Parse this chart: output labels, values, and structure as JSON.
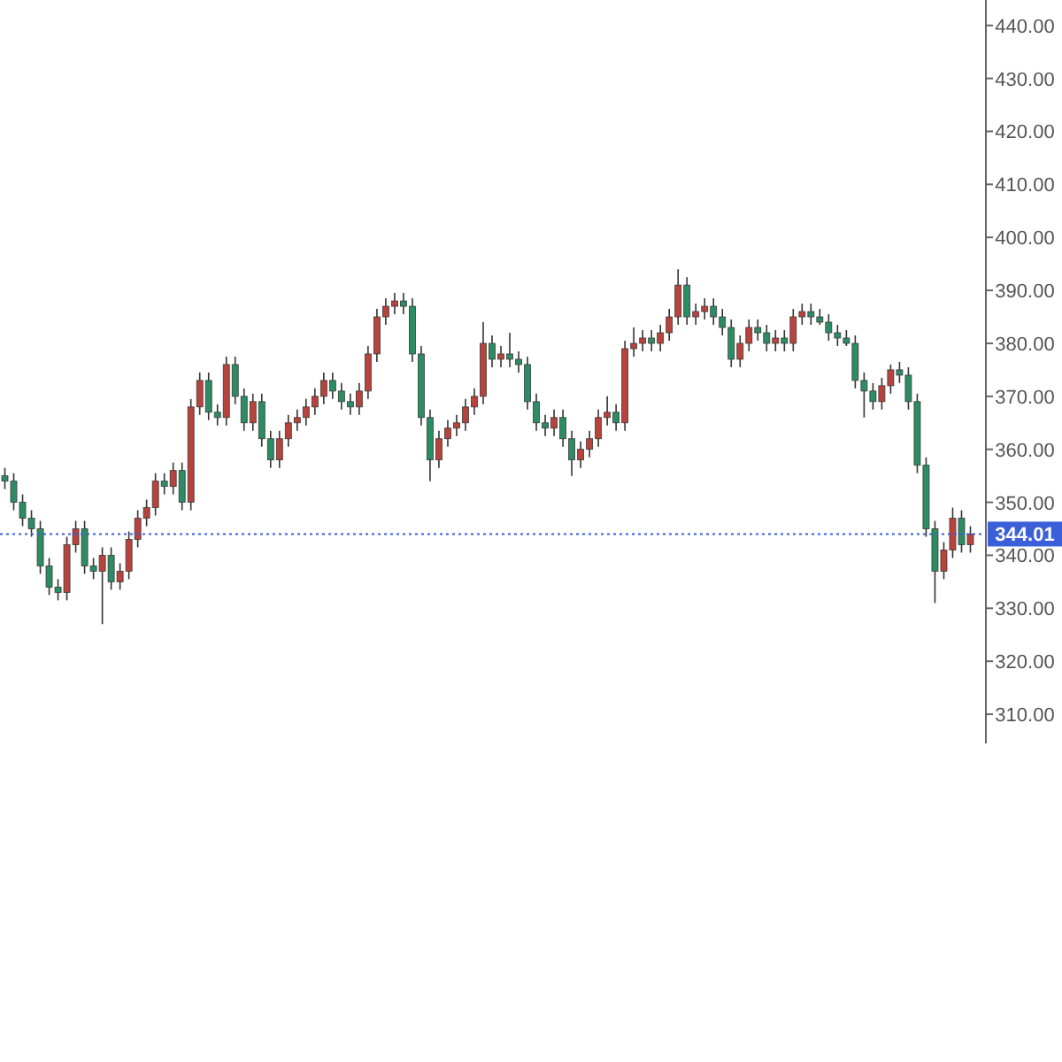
{
  "chart_data": {
    "type": "candlestick",
    "categories": [
      null,
      null,
      null,
      null,
      null,
      null,
      null,
      null,
      null,
      null,
      null,
      null,
      null,
      null,
      null,
      null,
      null,
      null,
      null,
      null,
      null,
      null,
      null,
      null,
      null,
      null,
      null,
      null,
      null,
      null,
      null,
      null,
      null,
      null,
      null,
      null,
      null,
      null,
      null,
      null,
      null,
      null,
      null,
      null,
      null,
      null,
      null,
      null,
      null,
      null,
      null,
      null,
      null,
      null,
      null,
      null,
      null,
      null,
      null,
      null,
      null,
      null,
      null,
      null,
      null,
      null,
      null,
      null,
      null,
      null,
      null,
      null,
      null,
      null,
      null,
      null,
      null,
      null,
      null,
      null,
      null,
      null,
      null,
      null,
      null,
      null,
      null,
      null,
      null,
      null,
      null,
      null,
      null,
      null,
      null,
      null,
      null,
      null,
      null,
      null,
      null,
      null,
      null,
      null,
      null,
      null,
      null,
      null,
      null,
      null
    ],
    "ohlc": [
      [
        355,
        356.5,
        352.5,
        354
      ],
      [
        354,
        355.5,
        348.5,
        350
      ],
      [
        350,
        351.5,
        345.5,
        347
      ],
      [
        347,
        348.5,
        343.5,
        345
      ],
      [
        345,
        346.5,
        336.5,
        338
      ],
      [
        338,
        339.5,
        332.5,
        334
      ],
      [
        334,
        335.5,
        331.5,
        333
      ],
      [
        333,
        343.5,
        331.5,
        342
      ],
      [
        342,
        346.5,
        340.5,
        345
      ],
      [
        345,
        346.5,
        336.5,
        338
      ],
      [
        338,
        339.5,
        335.5,
        337
      ],
      [
        337,
        341.5,
        327,
        340
      ],
      [
        340,
        341.5,
        333.5,
        335
      ],
      [
        335,
        338.5,
        333.5,
        337
      ],
      [
        337,
        344.5,
        335.5,
        343
      ],
      [
        343,
        348.5,
        341.5,
        347
      ],
      [
        347,
        350.5,
        345.5,
        349
      ],
      [
        349,
        355.5,
        347.5,
        354
      ],
      [
        354,
        355.5,
        351.5,
        353
      ],
      [
        353,
        357.5,
        351.5,
        356
      ],
      [
        356,
        357.5,
        348.5,
        350
      ],
      [
        350,
        369.5,
        348.5,
        368
      ],
      [
        368,
        374.5,
        366.5,
        373
      ],
      [
        373,
        374.5,
        365.5,
        367
      ],
      [
        367,
        368.5,
        364.5,
        366
      ],
      [
        366,
        377.5,
        364.5,
        376
      ],
      [
        376,
        377.5,
        368.5,
        370
      ],
      [
        370,
        371.5,
        363.5,
        365
      ],
      [
        365,
        370.5,
        363.5,
        369
      ],
      [
        369,
        370.5,
        360.5,
        362
      ],
      [
        362,
        363.5,
        356.5,
        358
      ],
      [
        358,
        363.5,
        356.5,
        362
      ],
      [
        362,
        366.5,
        360.5,
        365
      ],
      [
        365,
        367.5,
        363.5,
        366
      ],
      [
        366,
        369.5,
        364.5,
        368
      ],
      [
        368,
        371.5,
        366.5,
        370
      ],
      [
        370,
        374.5,
        368.5,
        373
      ],
      [
        373,
        374.5,
        369.5,
        371
      ],
      [
        371,
        372.5,
        367.5,
        369
      ],
      [
        369,
        370.5,
        366.5,
        368
      ],
      [
        368,
        372.5,
        366.5,
        371
      ],
      [
        371,
        379.5,
        369.5,
        378
      ],
      [
        378,
        386.5,
        376.5,
        385
      ],
      [
        385,
        388.5,
        383.5,
        387
      ],
      [
        387,
        389.5,
        385.5,
        388
      ],
      [
        388,
        389.5,
        385.5,
        387
      ],
      [
        387,
        388.5,
        376.5,
        378
      ],
      [
        378,
        379.5,
        364.5,
        366
      ],
      [
        366,
        367.5,
        354,
        358
      ],
      [
        358,
        363.5,
        356.5,
        362
      ],
      [
        362,
        365.5,
        360.5,
        364
      ],
      [
        364,
        366.5,
        362.5,
        365
      ],
      [
        365,
        369.5,
        363.5,
        368
      ],
      [
        368,
        371.5,
        366.5,
        370
      ],
      [
        370,
        384,
        368.5,
        380
      ],
      [
        380,
        381.5,
        375.5,
        377
      ],
      [
        377,
        379.5,
        375.5,
        378
      ],
      [
        378,
        382,
        375.5,
        377
      ],
      [
        377,
        378.5,
        374.5,
        376
      ],
      [
        376,
        377.5,
        367.5,
        369
      ],
      [
        369,
        370.5,
        363.5,
        365
      ],
      [
        365,
        366.5,
        362.5,
        364
      ],
      [
        364,
        367.5,
        362.5,
        366
      ],
      [
        366,
        367.5,
        360.5,
        362
      ],
      [
        362,
        363.5,
        355,
        358
      ],
      [
        358,
        361.5,
        356.5,
        360
      ],
      [
        360,
        363.5,
        358.5,
        362
      ],
      [
        362,
        367.5,
        360.5,
        366
      ],
      [
        366,
        370,
        364.5,
        367
      ],
      [
        367,
        368.5,
        363.5,
        365
      ],
      [
        365,
        380.5,
        363.5,
        379
      ],
      [
        379,
        383,
        377.5,
        380
      ],
      [
        380,
        382.5,
        378.5,
        381
      ],
      [
        381,
        382.5,
        378.5,
        380
      ],
      [
        380,
        383.5,
        378.5,
        382
      ],
      [
        382,
        386.5,
        380.5,
        385
      ],
      [
        385,
        394,
        383.5,
        391
      ],
      [
        391,
        392.5,
        383.5,
        385
      ],
      [
        385,
        387.5,
        383.5,
        386
      ],
      [
        386,
        388.5,
        384.5,
        387
      ],
      [
        387,
        388.5,
        383.5,
        385
      ],
      [
        385,
        386.5,
        381.5,
        383
      ],
      [
        383,
        384.5,
        375.5,
        377
      ],
      [
        377,
        381.5,
        375.5,
        380
      ],
      [
        380,
        384.5,
        378.5,
        383
      ],
      [
        383,
        384.5,
        380.5,
        382
      ],
      [
        382,
        383.5,
        378.5,
        380
      ],
      [
        380,
        382.5,
        378.5,
        381
      ],
      [
        381,
        382.5,
        378.5,
        380
      ],
      [
        380,
        386.5,
        378.5,
        385
      ],
      [
        385,
        387.5,
        383.5,
        386
      ],
      [
        386,
        387.5,
        383.5,
        385
      ],
      [
        385,
        386.5,
        383.5,
        384
      ],
      [
        384,
        385.5,
        380.5,
        382
      ],
      [
        382,
        383.5,
        379.5,
        381
      ],
      [
        381,
        382.5,
        379.5,
        380
      ],
      [
        380,
        381.5,
        371.5,
        373
      ],
      [
        373,
        374.5,
        366,
        371
      ],
      [
        371,
        372.5,
        367.5,
        369
      ],
      [
        369,
        373.5,
        367.5,
        372
      ],
      [
        372,
        376,
        370.5,
        375
      ],
      [
        375,
        376.5,
        372.5,
        374
      ],
      [
        374,
        375.5,
        367.5,
        369
      ],
      [
        369,
        370.5,
        355.5,
        357
      ],
      [
        357,
        358.5,
        343.5,
        345
      ],
      [
        345,
        346.5,
        331,
        337
      ],
      [
        337,
        342.5,
        335.5,
        341
      ],
      [
        341,
        349,
        339.5,
        347
      ],
      [
        347,
        348.5,
        340.5,
        342
      ],
      [
        342,
        345.5,
        340.5,
        344
      ]
    ],
    "colors": [
      "#2c8c63",
      "#2c8c63",
      "#2c8c63",
      "#2c8c63",
      "#2c8c63",
      "#2c8c63",
      "#2c8c63",
      "#b8433c",
      "#b8433c",
      "#2c8c63",
      "#2c8c63",
      "#b8433c",
      "#2c8c63",
      "#b8433c",
      "#b8433c",
      "#b8433c",
      "#b8433c",
      "#b8433c",
      "#2c8c63",
      "#b8433c",
      "#2c8c63",
      "#b8433c",
      "#b8433c",
      "#2c8c63",
      "#2c8c63",
      "#b8433c",
      "#2c8c63",
      "#2c8c63",
      "#b8433c",
      "#2c8c63",
      "#2c8c63",
      "#b8433c",
      "#b8433c",
      "#b8433c",
      "#b8433c",
      "#b8433c",
      "#b8433c",
      "#2c8c63",
      "#2c8c63",
      "#2c8c63",
      "#b8433c",
      "#b8433c",
      "#b8433c",
      "#b8433c",
      "#b8433c",
      "#2c8c63",
      "#2c8c63",
      "#2c8c63",
      "#2c8c63",
      "#b8433c",
      "#b8433c",
      "#b8433c",
      "#b8433c",
      "#b8433c",
      "#b8433c",
      "#2c8c63",
      "#b8433c",
      "#2c8c63",
      "#2c8c63",
      "#2c8c63",
      "#2c8c63",
      "#2c8c63",
      "#b8433c",
      "#2c8c63",
      "#2c8c63",
      "#b8433c",
      "#b8433c",
      "#b8433c",
      "#b8433c",
      "#2c8c63",
      "#b8433c",
      "#b8433c",
      "#b8433c",
      "#2c8c63",
      "#b8433c",
      "#b8433c",
      "#b8433c",
      "#2c8c63",
      "#b8433c",
      "#b8433c",
      "#2c8c63",
      "#2c8c63",
      "#2c8c63",
      "#b8433c",
      "#b8433c",
      "#2c8c63",
      "#2c8c63",
      "#b8433c",
      "#2c8c63",
      "#b8433c",
      "#b8433c",
      "#2c8c63",
      "#2c8c63",
      "#2c8c63",
      "#2c8c63",
      "#2c8c63",
      "#2c8c63",
      "#2c8c63",
      "#2c8c63",
      "#b8433c",
      "#b8433c",
      "#2c8c63",
      "#2c8c63",
      "#2c8c63",
      "#2c8c63",
      "#2c8c63",
      "#b8433c",
      "#b8433c",
      "#2c8c63",
      "#b8433c"
    ],
    "ylim": [
      304.5,
      444.8
    ],
    "yticks": [
      {
        "value": 310,
        "label": "310.00"
      },
      {
        "value": 320,
        "label": "320.00"
      },
      {
        "value": 330,
        "label": "330.00"
      },
      {
        "value": 340,
        "label": "340.00"
      },
      {
        "value": 350,
        "label": "350.00"
      },
      {
        "value": 360,
        "label": "360.00"
      },
      {
        "value": 370,
        "label": "370.00"
      },
      {
        "value": 380,
        "label": "380.00"
      },
      {
        "value": 390,
        "label": "390.00"
      },
      {
        "value": 400,
        "label": "400.00"
      },
      {
        "value": 410,
        "label": "410.00"
      },
      {
        "value": 420,
        "label": "420.00"
      },
      {
        "value": 430,
        "label": "430.00"
      },
      {
        "value": 440,
        "label": "440.00"
      }
    ],
    "ref_lines": [
      {
        "axis": "y",
        "value": 344.01,
        "label": "344.01",
        "color": "#3a5fd9",
        "line_style": "dotted"
      }
    ],
    "tick_labels": "y",
    "grid": false
  }
}
